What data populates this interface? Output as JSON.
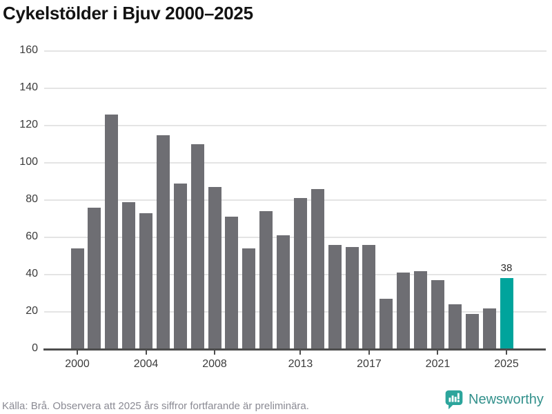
{
  "title": "Cykelstölder i Bjuv 2000–2025",
  "chart_data": {
    "type": "bar",
    "title": "Cykelstölder i Bjuv 2000–2025",
    "categories": [
      "2000",
      "2001",
      "2002",
      "2003",
      "2004",
      "2005",
      "2006",
      "2007",
      "2008",
      "2009",
      "2010",
      "2011",
      "2012",
      "2013",
      "2014",
      "2015",
      "2016",
      "2017",
      "2018",
      "2019",
      "2020",
      "2021",
      "2022",
      "2023",
      "2024",
      "2025"
    ],
    "values": [
      54,
      76,
      126,
      79,
      73,
      115,
      89,
      110,
      87,
      71,
      54,
      74,
      61,
      81,
      86,
      56,
      55,
      56,
      27,
      41,
      42,
      37,
      24,
      19,
      22,
      38
    ],
    "xlabel": "",
    "ylabel": "",
    "ylim": [
      0,
      160
    ],
    "yticks": [
      0,
      20,
      40,
      60,
      80,
      100,
      120,
      140,
      160
    ],
    "xticks": [
      "2000",
      "2004",
      "2008",
      "2013",
      "2017",
      "2021",
      "2025"
    ],
    "grid": true,
    "legend": "none",
    "bar_color": "#6E6E73",
    "highlight_color": "#00A49C",
    "highlight_category": "2025",
    "highlight_value_label": "38"
  },
  "footer": {
    "source_text": "Källa: Brå. Observera att 2025 års siffror fortfarande är preliminära.",
    "logo_text": "Newsworthy"
  },
  "colors": {
    "gridline": "#E4E4E4",
    "axis": "#4D4D4D",
    "tick_label": "#3B3B3B",
    "title": "#131313",
    "source_text": "#8A8A93",
    "logo_teal": "#2CA59C"
  },
  "icons": {
    "logo_icon": "newsworthy-speech-bubble-barchart-icon"
  }
}
